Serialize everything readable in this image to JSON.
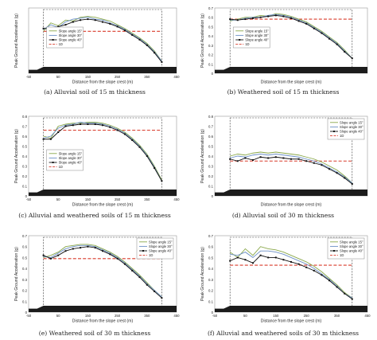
{
  "figure": {
    "captions": [
      "(a)  Alluvial soil of 15 m thickness",
      "(b)  Weathered soil of 15 m thickness",
      "(c)  Alluvial and weathered soils of 15 m thickness",
      "(d)  Alluvial soil of 30 m thickness",
      "(e)  Weathered soil of 30 m thickness",
      "(f)  Alluvial and weathered soils of 30 m thickness"
    ]
  },
  "colors": {
    "slope_15": "#8aa84a",
    "slope_30": "#6b8fc6",
    "slope_40": "#111111",
    "one_d": "#d93b2b",
    "soil_fill": "#1c1c1c"
  },
  "chart_data": [
    {
      "type": "line",
      "ylabel": "Peak Ground Acceleration (g)",
      "xlabel": "Distance from the slope crest (m)",
      "xlim": [
        -50,
        450
      ],
      "ylim": [
        0,
        0.7
      ],
      "xticks": [
        "-50",
        "50",
        "150",
        "250",
        "350",
        "450"
      ],
      "yticks": [],
      "legend": [
        "Slope angle 15°",
        "Slope angle 30°",
        "Slope angle 40°",
        "1D"
      ],
      "legend_position": "lower-left",
      "baseline_1d": 0.45,
      "x": [
        0,
        25,
        50,
        75,
        100,
        125,
        150,
        175,
        200,
        225,
        250,
        275,
        300,
        325,
        350,
        375,
        400
      ],
      "series": [
        {
          "name": "Slope angle 15°",
          "values": [
            0.45,
            0.54,
            0.51,
            0.57,
            0.56,
            0.6,
            0.61,
            0.6,
            0.58,
            0.56,
            0.52,
            0.48,
            0.43,
            0.38,
            0.32,
            0.24,
            0.13
          ]
        },
        {
          "name": "Slope angle 30°",
          "values": [
            0.47,
            0.52,
            0.49,
            0.55,
            0.58,
            0.59,
            0.6,
            0.58,
            0.57,
            0.54,
            0.51,
            0.47,
            0.42,
            0.37,
            0.31,
            0.23,
            0.13
          ]
        },
        {
          "name": "Slope angle 40°",
          "values": [
            0.48,
            0.48,
            0.5,
            0.52,
            0.55,
            0.57,
            0.58,
            0.57,
            0.55,
            0.53,
            0.5,
            0.46,
            0.41,
            0.36,
            0.3,
            0.22,
            0.12
          ]
        }
      ]
    },
    {
      "type": "line",
      "ylabel": "Peak Ground Acceleration (g)",
      "xlabel": "Distance from the slope crest (m)",
      "xlim": [
        -50,
        450
      ],
      "ylim": [
        0,
        0.7
      ],
      "xticks": [],
      "yticks": [
        "0",
        "0.1",
        "0.2",
        "0.3",
        "0.4",
        "0.5",
        "0.6",
        "0.7"
      ],
      "legend": [
        "Slope angle 15°",
        "Slope angle 30°",
        "Slope angle 40°",
        "1D"
      ],
      "legend_position": "lower-left",
      "baseline_1d": 0.58,
      "x": [
        0,
        25,
        50,
        75,
        100,
        125,
        150,
        175,
        200,
        225,
        250,
        275,
        300,
        325,
        350,
        375,
        400
      ],
      "series": [
        {
          "name": "Slope angle 15°",
          "values": [
            0.56,
            0.58,
            0.6,
            0.6,
            0.62,
            0.61,
            0.64,
            0.63,
            0.61,
            0.58,
            0.55,
            0.5,
            0.45,
            0.39,
            0.33,
            0.25,
            0.16
          ]
        },
        {
          "name": "Slope angle 30°",
          "values": [
            0.57,
            0.57,
            0.59,
            0.6,
            0.6,
            0.62,
            0.63,
            0.62,
            0.6,
            0.57,
            0.54,
            0.49,
            0.44,
            0.38,
            0.32,
            0.24,
            0.16
          ]
        },
        {
          "name": "Slope angle 40°",
          "values": [
            0.58,
            0.57,
            0.58,
            0.59,
            0.6,
            0.61,
            0.62,
            0.61,
            0.59,
            0.56,
            0.53,
            0.48,
            0.43,
            0.37,
            0.31,
            0.23,
            0.16
          ]
        }
      ]
    },
    {
      "type": "line",
      "ylabel": "Peak Ground Acceleration (g)",
      "xlabel": "Distance from the slope crest (m)",
      "xlim": [
        -50,
        450
      ],
      "ylim": [
        0,
        0.8
      ],
      "xticks": [
        "-50",
        "50",
        "150",
        "250",
        "350",
        "450"
      ],
      "yticks": [
        "0",
        "0.1",
        "0.2",
        "0.3",
        "0.4",
        "0.5",
        "0.6",
        "0.7",
        "0.8"
      ],
      "legend": [
        "Slope angle 15°",
        "Slope angle 30°",
        "Slope angle 40°",
        "1D"
      ],
      "legend_position": "lower-left",
      "baseline_1d": 0.66,
      "x": [
        0,
        25,
        50,
        75,
        100,
        125,
        150,
        175,
        200,
        225,
        250,
        275,
        300,
        325,
        350,
        375,
        400
      ],
      "series": [
        {
          "name": "Slope angle 15°",
          "values": [
            0.6,
            0.58,
            0.7,
            0.72,
            0.73,
            0.73,
            0.74,
            0.74,
            0.73,
            0.71,
            0.68,
            0.64,
            0.58,
            0.51,
            0.42,
            0.3,
            0.16
          ]
        },
        {
          "name": "Slope angle 30°",
          "values": [
            0.58,
            0.6,
            0.68,
            0.71,
            0.72,
            0.74,
            0.73,
            0.73,
            0.72,
            0.7,
            0.67,
            0.63,
            0.57,
            0.5,
            0.41,
            0.29,
            0.15
          ]
        },
        {
          "name": "Slope angle 40°",
          "values": [
            0.57,
            0.57,
            0.64,
            0.7,
            0.71,
            0.72,
            0.72,
            0.72,
            0.71,
            0.69,
            0.66,
            0.62,
            0.56,
            0.49,
            0.4,
            0.28,
            0.15
          ]
        }
      ]
    },
    {
      "type": "line",
      "ylabel": "Peak Ground Acceleration (g)",
      "xlabel": "Distance from the slope crest (m)",
      "xlim": [
        -50,
        450
      ],
      "ylim": [
        0,
        0.8
      ],
      "xticks": [],
      "yticks": [
        "0",
        "0.1",
        "0.2",
        "0.3",
        "0.4",
        "0.5",
        "0.6",
        "0.7",
        "0.8"
      ],
      "legend": [
        "Slope angle 15°",
        "Slope angle 30°",
        "Slope angle 40°",
        "1D"
      ],
      "legend_position": "top-right",
      "baseline_1d": 0.35,
      "x": [
        0,
        25,
        50,
        75,
        100,
        125,
        150,
        175,
        200,
        225,
        250,
        275,
        300,
        325,
        350,
        375,
        400
      ],
      "series": [
        {
          "name": "Slope angle 15°",
          "values": [
            0.4,
            0.42,
            0.41,
            0.43,
            0.44,
            0.43,
            0.44,
            0.43,
            0.42,
            0.41,
            0.39,
            0.37,
            0.34,
            0.3,
            0.26,
            0.2,
            0.13
          ]
        },
        {
          "name": "Slope angle 30°",
          "values": [
            0.38,
            0.4,
            0.39,
            0.41,
            0.42,
            0.41,
            0.42,
            0.41,
            0.4,
            0.39,
            0.37,
            0.35,
            0.32,
            0.28,
            0.24,
            0.19,
            0.13
          ]
        },
        {
          "name": "Slope angle 40°",
          "values": [
            0.37,
            0.35,
            0.38,
            0.36,
            0.39,
            0.38,
            0.39,
            0.38,
            0.37,
            0.37,
            0.35,
            0.33,
            0.31,
            0.27,
            0.23,
            0.18,
            0.12
          ]
        }
      ]
    },
    {
      "type": "line",
      "ylabel": "Peak Ground Acceleration (g)",
      "xlabel": "Distance from the slope crest (m)",
      "xlim": [
        -50,
        450
      ],
      "ylim": [
        0,
        0.7
      ],
      "xticks": [
        "-50",
        "50",
        "150",
        "250",
        "350",
        "450"
      ],
      "yticks": [
        "0",
        "0.1",
        "0.2",
        "0.3",
        "0.4",
        "0.5",
        "0.6",
        "0.7"
      ],
      "legend": [
        "Slope angle 15°",
        "Slope angle 30°",
        "Slope angle 40°",
        "1D"
      ],
      "legend_position": "top-right",
      "baseline_1d": 0.49,
      "x": [
        0,
        25,
        50,
        75,
        100,
        125,
        150,
        175,
        200,
        225,
        250,
        275,
        300,
        325,
        350,
        375,
        400
      ],
      "series": [
        {
          "name": "Slope angle 15°",
          "values": [
            0.5,
            0.52,
            0.55,
            0.6,
            0.61,
            0.62,
            0.62,
            0.61,
            0.58,
            0.55,
            0.51,
            0.46,
            0.4,
            0.34,
            0.27,
            0.2,
            0.14
          ]
        },
        {
          "name": "Slope angle 30°",
          "values": [
            0.51,
            0.5,
            0.54,
            0.58,
            0.6,
            0.61,
            0.61,
            0.6,
            0.57,
            0.54,
            0.5,
            0.45,
            0.39,
            0.33,
            0.26,
            0.2,
            0.14
          ]
        },
        {
          "name": "Slope angle 40°",
          "values": [
            0.52,
            0.49,
            0.52,
            0.56,
            0.58,
            0.59,
            0.6,
            0.59,
            0.56,
            0.53,
            0.49,
            0.44,
            0.38,
            0.32,
            0.25,
            0.19,
            0.13
          ]
        }
      ]
    },
    {
      "type": "line",
      "ylabel": "Peak Ground Acceleration (g)",
      "xlabel": "Distance from the slope crest (m)",
      "xlim": [
        -50,
        450
      ],
      "ylim": [
        0,
        0.7
      ],
      "xticks": [
        "-50",
        "50",
        "150",
        "250",
        "350",
        "450"
      ],
      "yticks": [
        "0",
        "0.1",
        "0.2",
        "0.3",
        "0.4",
        "0.5",
        "0.6",
        "0.7"
      ],
      "legend": [
        "Slope angle 15°",
        "Slope angle 30°",
        "Slope angle 40°",
        "1D"
      ],
      "legend_position": "top-right",
      "baseline_1d": 0.43,
      "x": [
        0,
        25,
        50,
        75,
        100,
        125,
        150,
        175,
        200,
        225,
        250,
        275,
        300,
        325,
        350,
        375,
        400
      ],
      "series": [
        {
          "name": "Slope angle 15°",
          "values": [
            0.55,
            0.5,
            0.58,
            0.52,
            0.6,
            0.58,
            0.57,
            0.55,
            0.52,
            0.49,
            0.46,
            0.42,
            0.37,
            0.31,
            0.25,
            0.18,
            0.13
          ]
        },
        {
          "name": "Slope angle 30°",
          "values": [
            0.53,
            0.52,
            0.55,
            0.5,
            0.56,
            0.56,
            0.55,
            0.53,
            0.5,
            0.47,
            0.44,
            0.4,
            0.35,
            0.3,
            0.24,
            0.17,
            0.13
          ]
        },
        {
          "name": "Slope angle 40°",
          "values": [
            0.47,
            0.5,
            0.48,
            0.45,
            0.52,
            0.5,
            0.5,
            0.48,
            0.46,
            0.44,
            0.41,
            0.38,
            0.34,
            0.29,
            0.23,
            0.17,
            0.12
          ]
        }
      ]
    }
  ]
}
